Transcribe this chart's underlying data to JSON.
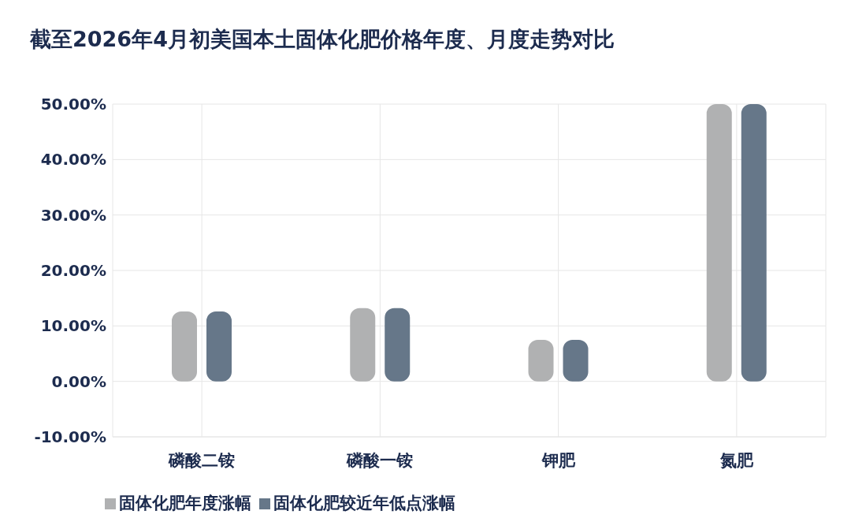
{
  "chart_data": {
    "type": "bar",
    "title": "截至2026年4月初美国本土固体化肥价格年度、月度走势对比",
    "categories": [
      "磷酸二铵",
      "磷酸一铵",
      "钾肥",
      "氮肥"
    ],
    "series": [
      {
        "name": "固体化肥年度涨幅",
        "color": "#b0b1b2",
        "values": [
          12.6,
          13.2,
          7.5,
          50
        ]
      },
      {
        "name": "固体化肥较近年低点涨幅",
        "color": "#667789",
        "values": [
          12.6,
          13.2,
          7.5,
          50
        ]
      }
    ],
    "ylim": [
      -10,
      50
    ],
    "yticks": [
      {
        "value": -10,
        "label": "-10.00%"
      },
      {
        "value": 0,
        "label": "0.00%"
      },
      {
        "value": 10,
        "label": "10.00%"
      },
      {
        "value": 20,
        "label": "20.00%"
      },
      {
        "value": 30,
        "label": "30.00%"
      },
      {
        "value": 40,
        "label": "40.00%"
      },
      {
        "value": 50,
        "label": "50.00%"
      }
    ],
    "grid": true,
    "legend": "bottom left"
  }
}
